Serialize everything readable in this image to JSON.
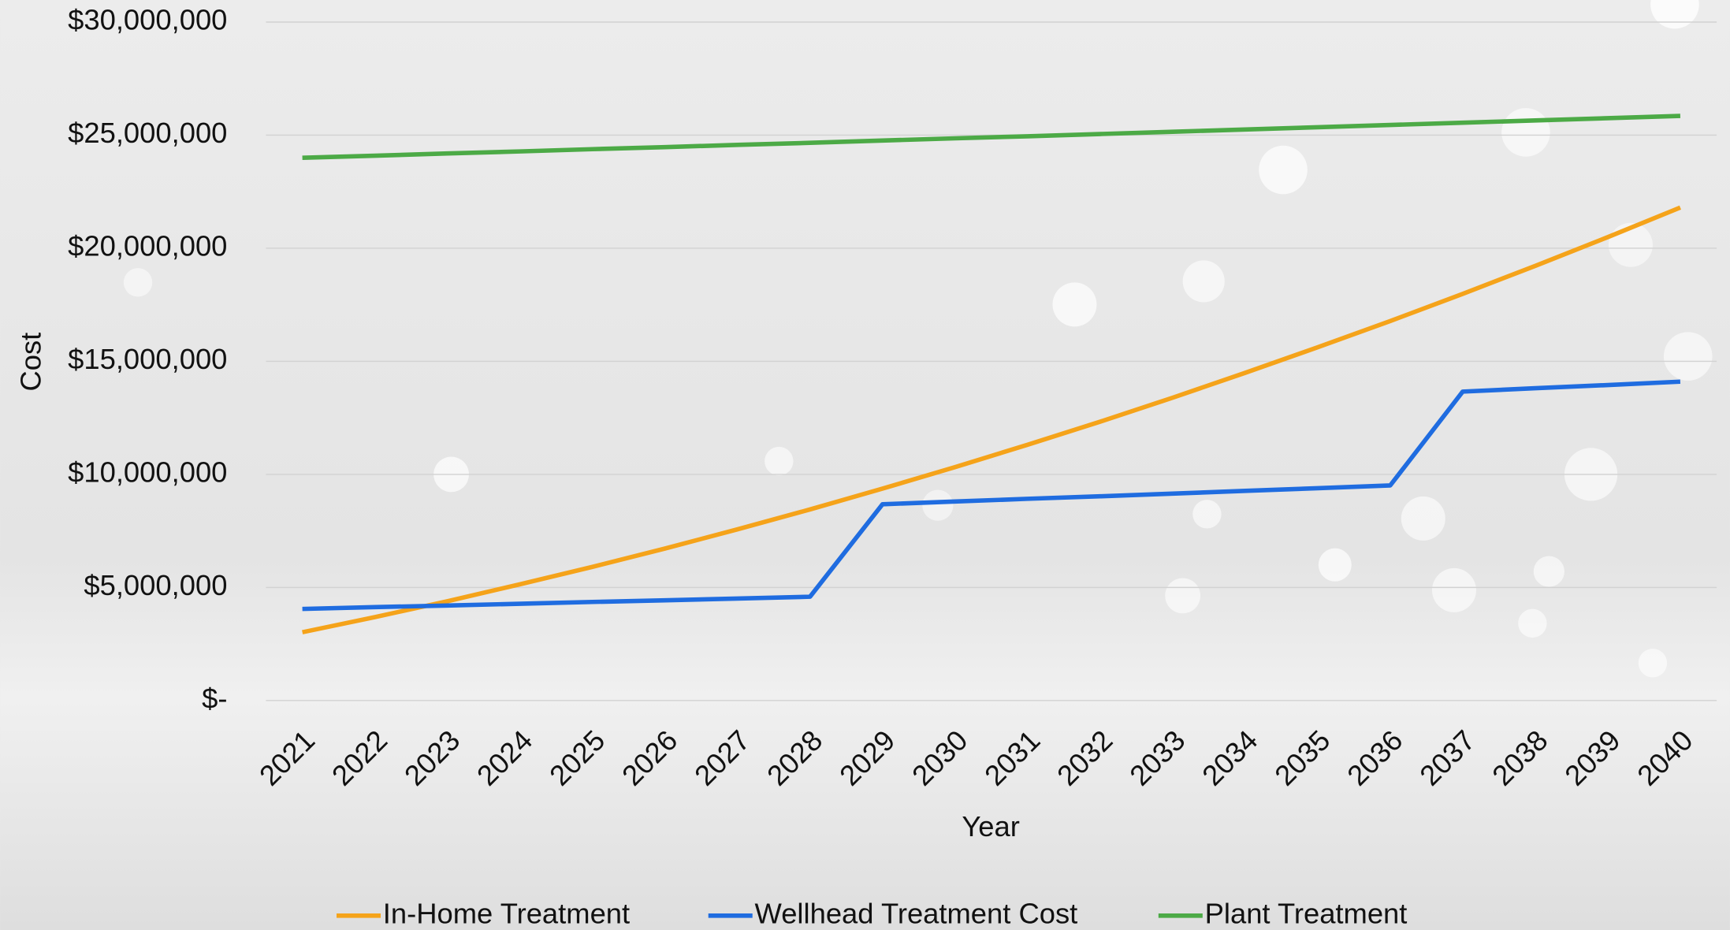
{
  "chart_data": {
    "type": "line",
    "x_label": "Year",
    "y_label": "Cost",
    "categories": [
      "2021",
      "2022",
      "2023",
      "2024",
      "2025",
      "2026",
      "2027",
      "2028",
      "2029",
      "2030",
      "2031",
      "2032",
      "2033",
      "2034",
      "2035",
      "2036",
      "2037",
      "2038",
      "2039",
      "2040"
    ],
    "series": [
      {
        "name": "In-Home Treatment",
        "color": "#f5a31a",
        "values": [
          3020000,
          3690000,
          4390000,
          5140000,
          5910000,
          6720000,
          7570000,
          8450000,
          9370000,
          10320000,
          11310000,
          12330000,
          13390000,
          14490000,
          15620000,
          16780000,
          17980000,
          19220000,
          20490000,
          21800000
        ]
      },
      {
        "name": "Wellhead Treatment Cost",
        "color": "#1f6ce0",
        "values": [
          4050000,
          4130000,
          4200000,
          4280000,
          4360000,
          4430000,
          4510000,
          4590000,
          8680000,
          8800000,
          8920000,
          9030000,
          9150000,
          9270000,
          9390000,
          9510000,
          13660000,
          13810000,
          13950000,
          14100000
        ]
      },
      {
        "name": "Plant Treatment",
        "color": "#4caa46",
        "values": [
          24000000,
          24090000,
          24190000,
          24280000,
          24380000,
          24470000,
          24570000,
          24660000,
          24760000,
          24860000,
          24950000,
          25050000,
          25150000,
          25250000,
          25350000,
          25450000,
          25550000,
          25650000,
          25750000,
          25850000
        ]
      }
    ],
    "ylim": [
      0,
      30000000
    ],
    "yticks": [
      {
        "value": 0,
        "label": "$-"
      },
      {
        "value": 5000000,
        "label": "$5,000,000"
      },
      {
        "value": 10000000,
        "label": "$10,000,000"
      },
      {
        "value": 15000000,
        "label": "$15,000,000"
      },
      {
        "value": 20000000,
        "label": "$20,000,000"
      },
      {
        "value": 25000000,
        "label": "$25,000,000"
      },
      {
        "value": 30000000,
        "label": "$30,000,000"
      }
    ],
    "grid": true,
    "legend": "bottom"
  }
}
